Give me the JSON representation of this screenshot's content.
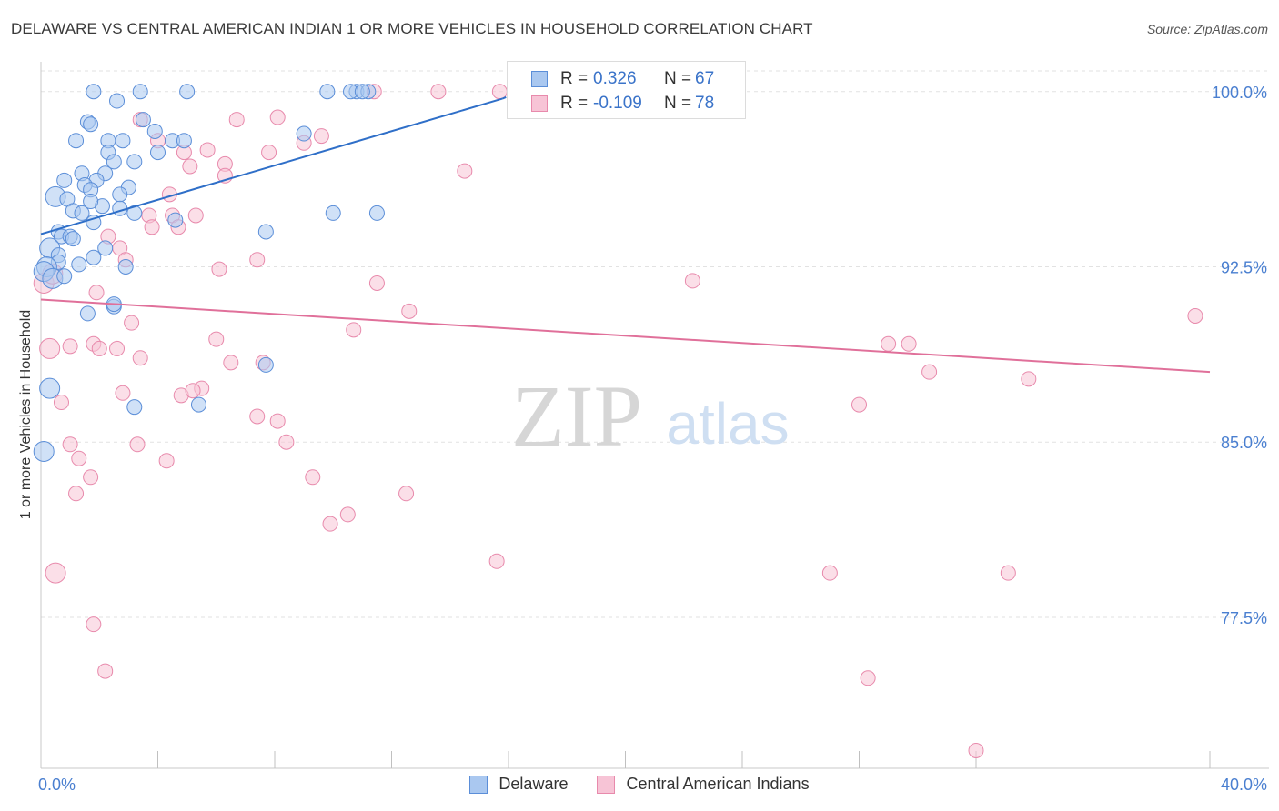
{
  "header": {
    "title": "DELAWARE VS CENTRAL AMERICAN INDIAN 1 OR MORE VEHICLES IN HOUSEHOLD CORRELATION CHART",
    "source": "Source: ZipAtlas.com"
  },
  "watermark": {
    "zip": "ZIP",
    "atlas": "atlas"
  },
  "stats": [
    {
      "r_label": "R =",
      "r_value": "0.326",
      "n_label": "N =",
      "n_value": "67"
    },
    {
      "r_label": "R =",
      "r_value": "-0.109",
      "n_label": "N =",
      "n_value": "78"
    }
  ],
  "legend": {
    "delaware": "Delaware",
    "cai": "Central American Indians"
  },
  "colors": {
    "delaware_fill": "#aac8f0",
    "delaware_stroke": "#5b8ed8",
    "delaware_line": "#2f6fc8",
    "cai_fill": "#f7c4d6",
    "cai_stroke": "#e88aac",
    "cai_line": "#e0709a",
    "tick_text": "#4a7fd0"
  },
  "chart_data": {
    "type": "scatter",
    "title": "DELAWARE VS CENTRAL AMERICAN INDIAN 1 OR MORE VEHICLES IN HOUSEHOLD CORRELATION CHART",
    "xlabel": "",
    "ylabel": "1 or more Vehicles in Household",
    "xlim": [
      0,
      40
    ],
    "ylim": [
      71.0,
      100.8
    ],
    "x_tick_labels": [
      "0.0%",
      "40.0%"
    ],
    "y_ticks": [
      77.5,
      85.0,
      92.5,
      100.0
    ],
    "y_tick_labels": [
      "77.5%",
      "85.0%",
      "92.5%",
      "100.0%"
    ],
    "grid": "horizontal dashed",
    "legend_position": "bottom-center",
    "series": [
      {
        "name": "Delaware",
        "r": 0.326,
        "n": 67,
        "trend": {
          "x": [
            0.0,
            15.8
          ],
          "y": [
            93.9,
            99.7
          ]
        },
        "points": [
          [
            1.8,
            100
          ],
          [
            3.4,
            100
          ],
          [
            5.0,
            100
          ],
          [
            9.8,
            100
          ],
          [
            10.8,
            100
          ],
          [
            11.2,
            100
          ],
          [
            10.6,
            100
          ],
          [
            11.0,
            100
          ],
          [
            2.6,
            99.6
          ],
          [
            1.6,
            98.7
          ],
          [
            3.5,
            98.8
          ],
          [
            1.7,
            98.6
          ],
          [
            3.9,
            98.3
          ],
          [
            9.0,
            98.2
          ],
          [
            1.2,
            97.9
          ],
          [
            2.3,
            97.9
          ],
          [
            2.8,
            97.9
          ],
          [
            4.5,
            97.9
          ],
          [
            4.9,
            97.9
          ],
          [
            2.3,
            97.4
          ],
          [
            4.0,
            97.4
          ],
          [
            3.2,
            97.0
          ],
          [
            2.5,
            97.0
          ],
          [
            2.2,
            96.5
          ],
          [
            1.4,
            96.5
          ],
          [
            1.9,
            96.2
          ],
          [
            0.8,
            96.2
          ],
          [
            1.5,
            96.0
          ],
          [
            1.7,
            95.8
          ],
          [
            3.0,
            95.9
          ],
          [
            2.7,
            95.6
          ],
          [
            0.5,
            95.5
          ],
          [
            0.9,
            95.4
          ],
          [
            2.1,
            95.1
          ],
          [
            2.7,
            95.0
          ],
          [
            1.7,
            95.3
          ],
          [
            1.1,
            94.9
          ],
          [
            1.4,
            94.8
          ],
          [
            3.2,
            94.8
          ],
          [
            4.6,
            94.5
          ],
          [
            10.0,
            94.8
          ],
          [
            11.5,
            94.8
          ],
          [
            1.8,
            94.4
          ],
          [
            0.6,
            94.0
          ],
          [
            7.7,
            94.0
          ],
          [
            0.7,
            93.8
          ],
          [
            1.0,
            93.8
          ],
          [
            1.1,
            93.7
          ],
          [
            0.3,
            93.3
          ],
          [
            2.2,
            93.3
          ],
          [
            0.6,
            93.0
          ],
          [
            1.8,
            92.9
          ],
          [
            1.3,
            92.6
          ],
          [
            0.6,
            92.7
          ],
          [
            2.9,
            92.5
          ],
          [
            0.2,
            92.5
          ],
          [
            0.1,
            92.3
          ],
          [
            0.4,
            92.0
          ],
          [
            0.8,
            92.1
          ],
          [
            2.5,
            90.8
          ],
          [
            2.5,
            90.9
          ],
          [
            1.6,
            90.5
          ],
          [
            7.7,
            88.3
          ],
          [
            0.3,
            87.3
          ],
          [
            3.2,
            86.5
          ],
          [
            5.4,
            86.6
          ],
          [
            0.1,
            84.6
          ]
        ]
      },
      {
        "name": "Central American Indians",
        "r": -0.109,
        "n": 78,
        "trend": {
          "x": [
            0.0,
            40.0
          ],
          "y": [
            91.1,
            88.0
          ]
        },
        "points": [
          [
            13.6,
            100
          ],
          [
            15.7,
            100
          ],
          [
            18.8,
            100
          ],
          [
            22.4,
            100
          ],
          [
            11.4,
            100
          ],
          [
            3.4,
            98.8
          ],
          [
            6.7,
            98.8
          ],
          [
            8.1,
            98.9
          ],
          [
            9.6,
            98.1
          ],
          [
            4.0,
            97.9
          ],
          [
            9.0,
            97.8
          ],
          [
            4.9,
            97.4
          ],
          [
            7.8,
            97.4
          ],
          [
            5.7,
            97.5
          ],
          [
            6.3,
            96.9
          ],
          [
            5.1,
            96.8
          ],
          [
            6.3,
            96.4
          ],
          [
            14.5,
            96.6
          ],
          [
            4.4,
            95.6
          ],
          [
            3.7,
            94.7
          ],
          [
            5.3,
            94.7
          ],
          [
            4.5,
            94.7
          ],
          [
            3.8,
            94.2
          ],
          [
            4.7,
            94.2
          ],
          [
            2.3,
            93.8
          ],
          [
            2.7,
            93.3
          ],
          [
            2.9,
            92.8
          ],
          [
            7.4,
            92.8
          ],
          [
            6.1,
            92.4
          ],
          [
            22.3,
            91.9
          ],
          [
            11.5,
            91.8
          ],
          [
            1.9,
            91.4
          ],
          [
            12.6,
            90.6
          ],
          [
            3.1,
            90.1
          ],
          [
            10.7,
            89.8
          ],
          [
            39.5,
            90.4
          ],
          [
            6.0,
            89.4
          ],
          [
            29.7,
            89.2
          ],
          [
            1.8,
            89.2
          ],
          [
            1.0,
            89.1
          ],
          [
            2.0,
            89.0
          ],
          [
            0.3,
            89.0
          ],
          [
            29.0,
            89.2
          ],
          [
            3.4,
            88.6
          ],
          [
            6.5,
            88.4
          ],
          [
            7.6,
            88.4
          ],
          [
            30.4,
            88.0
          ],
          [
            33.8,
            87.7
          ],
          [
            5.5,
            87.3
          ],
          [
            2.8,
            87.1
          ],
          [
            4.8,
            87.0
          ],
          [
            0.7,
            86.7
          ],
          [
            28.0,
            86.6
          ],
          [
            7.4,
            86.1
          ],
          [
            8.1,
            85.9
          ],
          [
            8.4,
            85.0
          ],
          [
            3.3,
            84.9
          ],
          [
            1.0,
            84.9
          ],
          [
            1.3,
            84.3
          ],
          [
            4.3,
            84.2
          ],
          [
            1.7,
            83.5
          ],
          [
            9.3,
            83.5
          ],
          [
            1.2,
            82.8
          ],
          [
            12.5,
            82.8
          ],
          [
            10.5,
            81.9
          ],
          [
            9.9,
            81.5
          ],
          [
            15.6,
            79.9
          ],
          [
            0.5,
            79.4
          ],
          [
            33.1,
            79.4
          ],
          [
            27.0,
            79.4
          ],
          [
            1.8,
            77.2
          ],
          [
            2.2,
            75.2
          ],
          [
            28.3,
            74.9
          ],
          [
            32.0,
            71.8
          ],
          [
            0.1,
            91.8
          ],
          [
            0.4,
            92.2
          ],
          [
            2.6,
            89.0
          ],
          [
            5.2,
            87.2
          ]
        ]
      }
    ]
  }
}
